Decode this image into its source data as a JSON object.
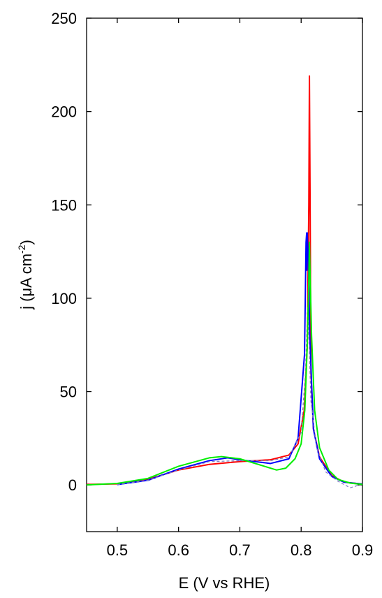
{
  "chart_data": {
    "type": "line",
    "title": "",
    "xlabel": "E (V vs RHE)",
    "ylabel_parts": {
      "prefix": "j (",
      "greek": "μ",
      "unit": "A cm",
      "exponent": "-2",
      "suffix": ")"
    },
    "xlim": [
      0.45,
      0.9
    ],
    "ylim": [
      -25,
      250
    ],
    "xticks": [
      0.5,
      0.6,
      0.7,
      0.8,
      0.9
    ],
    "xtick_labels": [
      "0.5",
      "0.6",
      "0.7",
      "0.8",
      "0.9"
    ],
    "yticks": [
      0,
      50,
      100,
      150,
      200,
      250
    ],
    "ytick_labels": [
      "0",
      "50",
      "100",
      "150",
      "200",
      "250"
    ],
    "grid": false,
    "legend": "none",
    "series": [
      {
        "color": "#ff0000",
        "style": "solid",
        "points": [
          [
            0.45,
            0.3
          ],
          [
            0.5,
            0.6
          ],
          [
            0.55,
            3
          ],
          [
            0.6,
            8
          ],
          [
            0.65,
            11
          ],
          [
            0.7,
            12.5
          ],
          [
            0.75,
            13.5
          ],
          [
            0.78,
            16
          ],
          [
            0.795,
            22
          ],
          [
            0.805,
            40
          ],
          [
            0.81,
            75
          ],
          [
            0.8125,
            150
          ],
          [
            0.8135,
            219
          ],
          [
            0.8145,
            160
          ],
          [
            0.816,
            60
          ],
          [
            0.82,
            30
          ],
          [
            0.83,
            15
          ],
          [
            0.85,
            5
          ],
          [
            0.87,
            1.5
          ],
          [
            0.9,
            0.5
          ]
        ]
      },
      {
        "color": "#0000ff",
        "style": "solid",
        "points": [
          [
            0.5,
            0.2
          ],
          [
            0.55,
            2.5
          ],
          [
            0.6,
            8.5
          ],
          [
            0.65,
            13
          ],
          [
            0.68,
            14.5
          ],
          [
            0.7,
            13.5
          ],
          [
            0.75,
            11.5
          ],
          [
            0.78,
            14
          ],
          [
            0.795,
            25
          ],
          [
            0.8055,
            70
          ],
          [
            0.808,
            130
          ],
          [
            0.809,
            135
          ],
          [
            0.8095,
            115
          ],
          [
            0.81,
            135
          ],
          [
            0.8105,
            130
          ],
          [
            0.812,
            120
          ],
          [
            0.814,
            80
          ],
          [
            0.82,
            30
          ],
          [
            0.83,
            14
          ],
          [
            0.85,
            4.5
          ],
          [
            0.87,
            1.5
          ],
          [
            0.9,
            0.5
          ]
        ]
      },
      {
        "color": "#8080c0",
        "style": "dashed",
        "points": [
          [
            0.5,
            0.2
          ],
          [
            0.55,
            2.5
          ],
          [
            0.6,
            8
          ],
          [
            0.65,
            12.5
          ],
          [
            0.7,
            13
          ],
          [
            0.75,
            13
          ],
          [
            0.78,
            15
          ],
          [
            0.8,
            28
          ],
          [
            0.807,
            60
          ],
          [
            0.8105,
            95
          ],
          [
            0.812,
            85
          ],
          [
            0.816,
            45
          ],
          [
            0.825,
            20
          ],
          [
            0.84,
            7
          ],
          [
            0.86,
            2
          ],
          [
            0.88,
            -1.5
          ],
          [
            0.9,
            0.5
          ]
        ]
      },
      {
        "color": "#00ee00",
        "style": "solid",
        "points": [
          [
            0.45,
            0
          ],
          [
            0.5,
            0.8
          ],
          [
            0.55,
            3.5
          ],
          [
            0.6,
            10
          ],
          [
            0.65,
            14.5
          ],
          [
            0.67,
            15.2
          ],
          [
            0.7,
            14
          ],
          [
            0.74,
            10
          ],
          [
            0.76,
            8
          ],
          [
            0.775,
            9
          ],
          [
            0.79,
            14
          ],
          [
            0.8,
            22
          ],
          [
            0.806,
            40
          ],
          [
            0.81,
            75
          ],
          [
            0.8125,
            110
          ],
          [
            0.8135,
            130
          ],
          [
            0.8145,
            115
          ],
          [
            0.817,
            80
          ],
          [
            0.822,
            40
          ],
          [
            0.83,
            20
          ],
          [
            0.845,
            8
          ],
          [
            0.86,
            3
          ],
          [
            0.88,
            1
          ],
          [
            0.9,
            0.3
          ]
        ]
      }
    ]
  }
}
